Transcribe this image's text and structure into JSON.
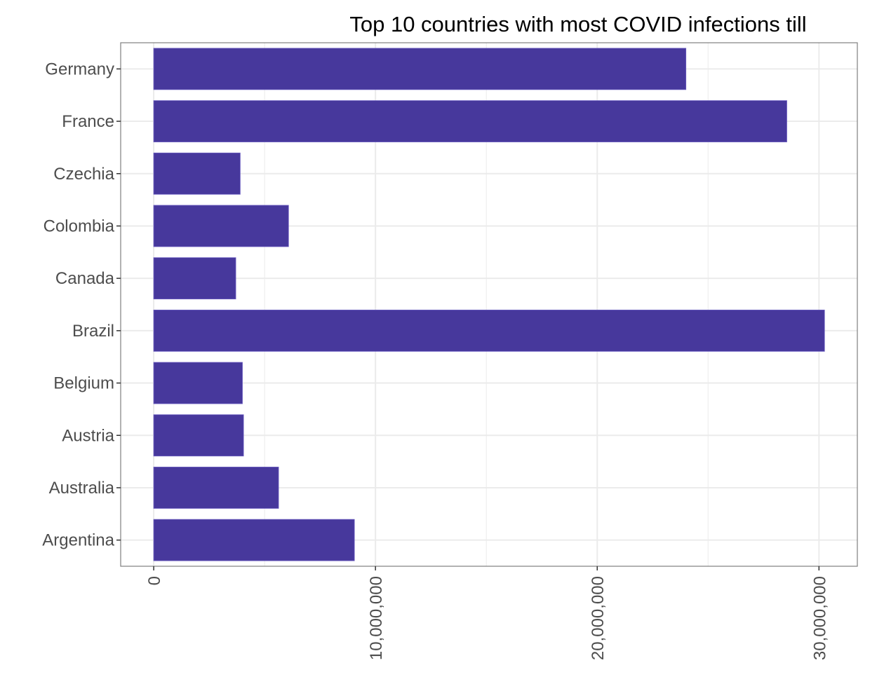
{
  "chart_data": {
    "type": "bar",
    "orientation": "horizontal",
    "title": "Top 10 countries with most COVID infections till",
    "xlabel": "",
    "ylabel": "",
    "categories": [
      "Germany",
      "France",
      "Czechia",
      "Colombia",
      "Canada",
      "Brazil",
      "Belgium",
      "Austria",
      "Australia",
      "Argentina"
    ],
    "values": [
      24000000,
      28550000,
      3900000,
      6080000,
      3700000,
      30250000,
      4000000,
      4050000,
      5630000,
      9050000
    ],
    "xlim": [
      -1490000,
      31730000
    ],
    "x_ticks": [
      0,
      10000000,
      20000000,
      30000000
    ],
    "x_tick_labels": [
      "0",
      "10,000,000",
      "20,000,000",
      "30,000,000"
    ],
    "x_tick_label_rotation": 90,
    "grid": true,
    "legend": "none",
    "colors": {
      "bar": "#47389c",
      "grid": "#ebebeb",
      "panel_border": "#333333",
      "axis_text": "#4d4d4d"
    }
  }
}
